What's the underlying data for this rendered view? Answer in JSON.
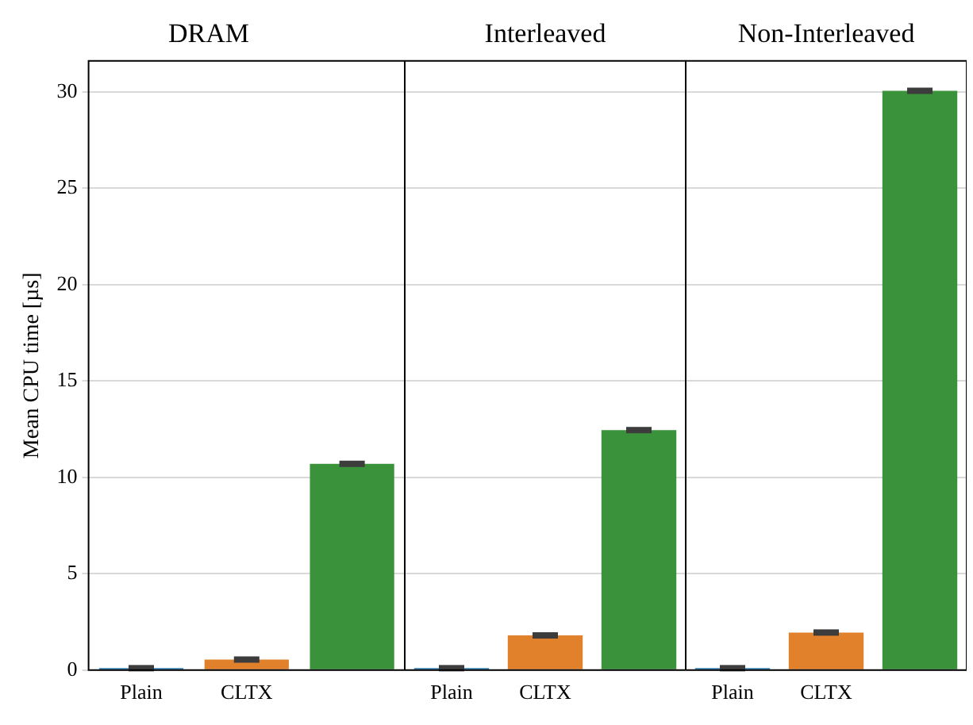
{
  "chart_data": [
    {
      "type": "bar",
      "title": "DRAM",
      "ylabel": "Mean CPU time [µs]",
      "categories": [
        "Plain",
        "CLTX",
        null
      ],
      "values": [
        0.1,
        0.55,
        10.7
      ],
      "colors": [
        "#1f77b4",
        "#e1812c",
        "#3a923a"
      ],
      "errors": [
        0.08,
        0.08,
        0.1
      ],
      "ylim": [
        0,
        31.6
      ],
      "yticks": [
        0,
        5,
        10,
        15,
        20,
        25,
        30
      ],
      "grid": "y"
    },
    {
      "type": "bar",
      "title": "Interleaved",
      "categories": [
        "Plain",
        "CLTX",
        null
      ],
      "values": [
        0.1,
        1.8,
        12.45
      ],
      "colors": [
        "#1f77b4",
        "#e1812c",
        "#3a923a"
      ],
      "errors": [
        0.08,
        0.08,
        0.1
      ],
      "ylim": [
        0,
        31.6
      ],
      "yticks": [
        0,
        5,
        10,
        15,
        20,
        25,
        30
      ],
      "grid": "y",
      "tick_labels": "x"
    },
    {
      "type": "bar",
      "title": "Non-Interleaved",
      "categories": [
        "Plain",
        "CLTX",
        null
      ],
      "values": [
        0.1,
        1.95,
        30.05
      ],
      "colors": [
        "#1f77b4",
        "#e1812c",
        "#3a923a"
      ],
      "errors": [
        0.08,
        0.08,
        0.1
      ],
      "ylim": [
        0,
        31.6
      ],
      "yticks": [
        0,
        5,
        10,
        15,
        20,
        25,
        30
      ],
      "grid": "y",
      "tick_labels": "x"
    }
  ]
}
